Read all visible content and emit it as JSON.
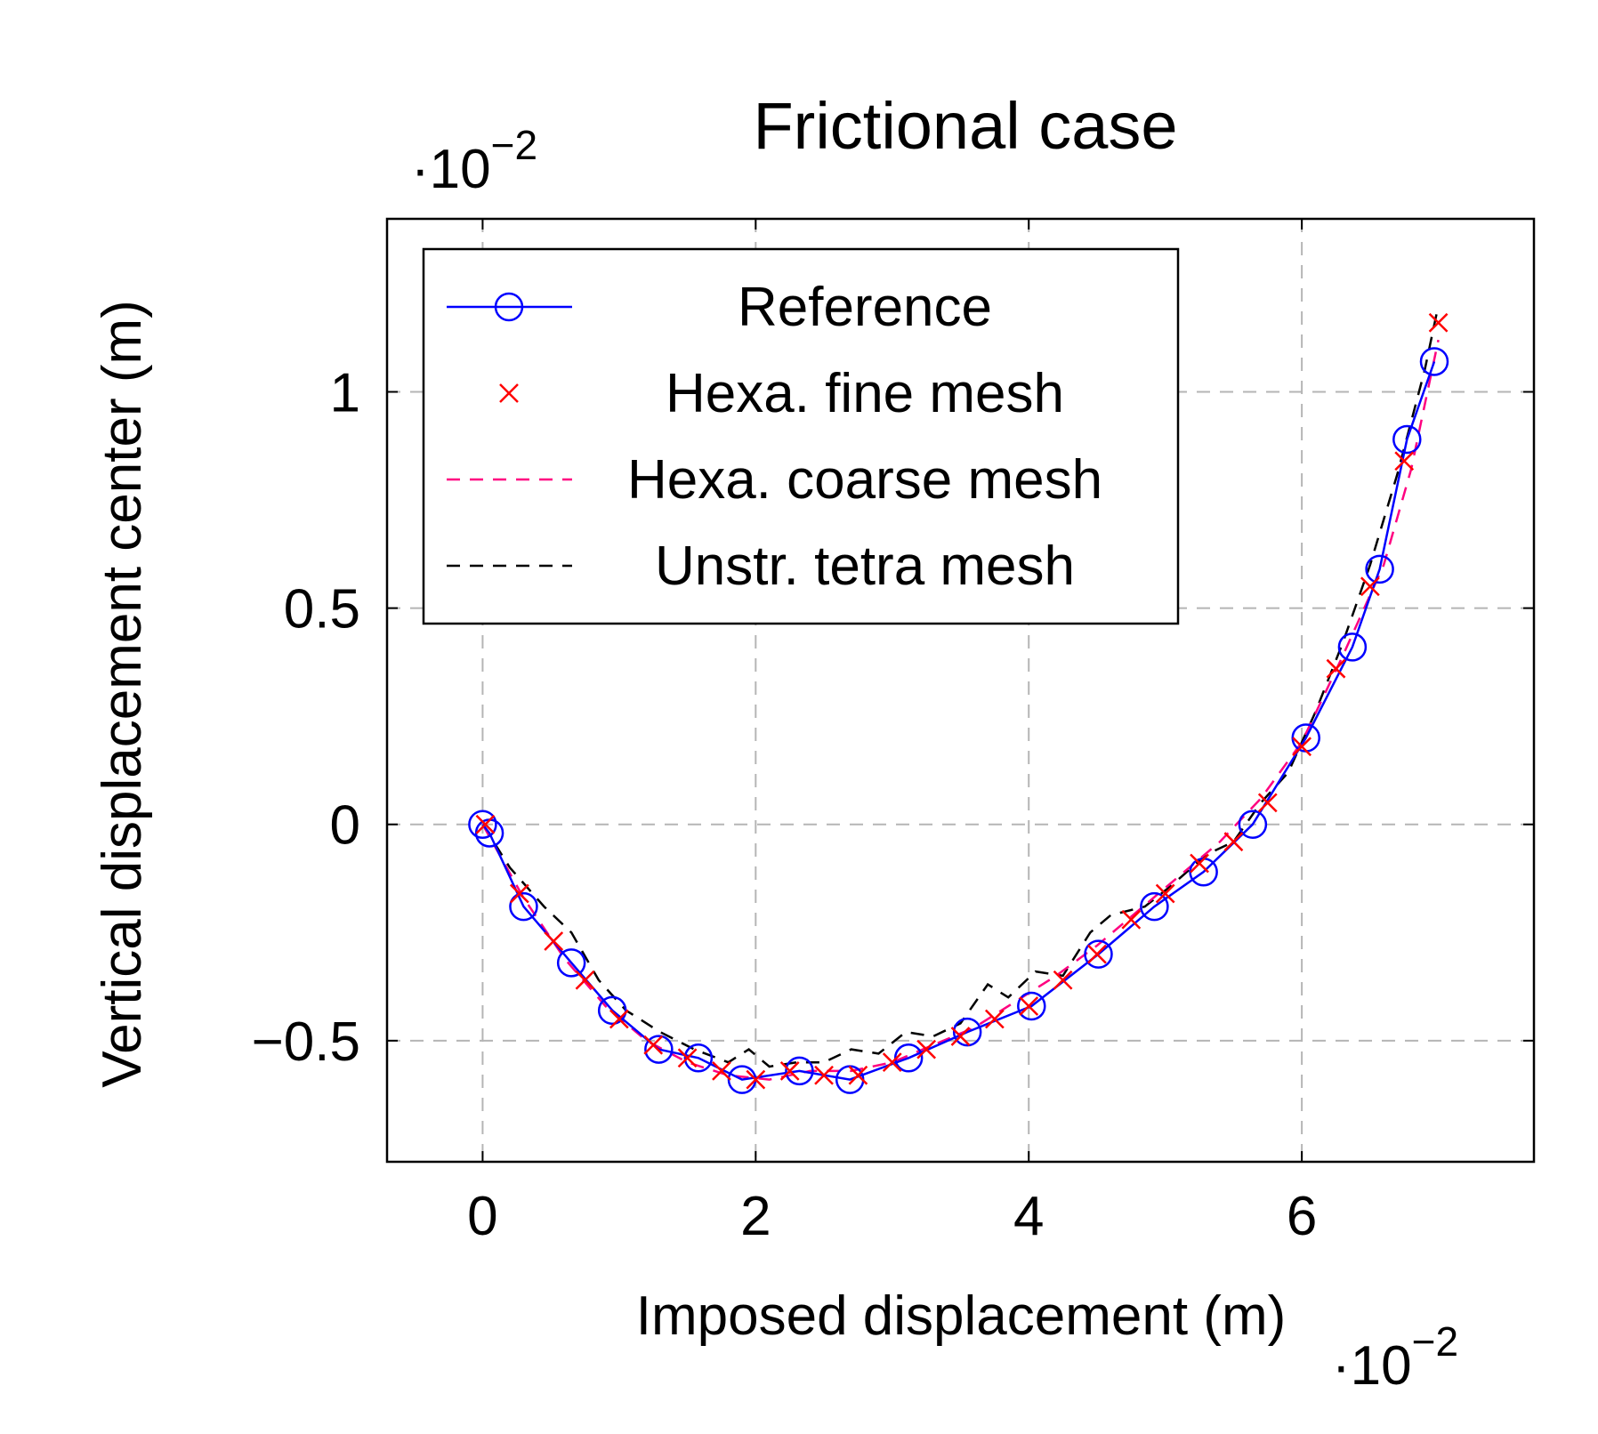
{
  "chart_data": {
    "type": "line",
    "title": "Frictional case",
    "xlabel": "Imposed displacement (m)",
    "ylabel": "Vertical displacement center (m)",
    "x_scale_label": "·10",
    "x_scale_exp": "−2",
    "y_scale_label": "·10",
    "y_scale_exp": "−2",
    "xlim": [
      -0.7,
      7.7
    ],
    "ylim": [
      -0.78,
      1.4
    ],
    "xticks": [
      0,
      2,
      4,
      6
    ],
    "xtick_labels": [
      "0",
      "2",
      "4",
      "6"
    ],
    "yticks": [
      -0.5,
      0,
      0.5,
      1
    ],
    "ytick_labels": [
      "−0.5",
      "0",
      "0.5",
      "1"
    ],
    "grid": true,
    "legend_position": "top-left",
    "series": [
      {
        "name": "Reference",
        "style": "solid-circle",
        "color": "#0000ff",
        "x": [
          0.0,
          0.05,
          0.3,
          0.65,
          0.95,
          1.29,
          1.58,
          1.9,
          2.32,
          2.69,
          3.12,
          3.55,
          4.02,
          4.51,
          4.92,
          5.28,
          5.64,
          6.03,
          6.37,
          6.57,
          6.77,
          6.97
        ],
        "y": [
          0.0,
          -0.02,
          -0.19,
          -0.32,
          -0.43,
          -0.52,
          -0.54,
          -0.59,
          -0.57,
          -0.59,
          -0.54,
          -0.48,
          -0.42,
          -0.3,
          -0.19,
          -0.11,
          0.0,
          0.2,
          0.41,
          0.59,
          0.89,
          1.07
        ]
      },
      {
        "name": "Hexa. fine mesh",
        "style": "cross",
        "color": "#ff0000",
        "x": [
          0.02,
          0.27,
          0.52,
          0.75,
          1.0,
          1.25,
          1.5,
          1.75,
          2.0,
          2.25,
          2.5,
          2.75,
          3.0,
          3.25,
          3.5,
          3.75,
          4.0,
          4.25,
          4.5,
          4.75,
          5.0,
          5.25,
          5.5,
          5.75,
          6.0,
          6.25,
          6.5,
          6.75,
          7.0
        ],
        "y": [
          0.0,
          -0.16,
          -0.27,
          -0.36,
          -0.45,
          -0.51,
          -0.54,
          -0.57,
          -0.59,
          -0.57,
          -0.58,
          -0.58,
          -0.55,
          -0.52,
          -0.49,
          -0.45,
          -0.42,
          -0.36,
          -0.3,
          -0.22,
          -0.16,
          -0.09,
          -0.04,
          0.05,
          0.18,
          0.36,
          0.55,
          0.84,
          1.16
        ]
      },
      {
        "name": "Hexa. coarse mesh",
        "style": "dashed",
        "color": "#ff0080",
        "x": [
          0.0,
          0.3,
          0.6,
          0.9,
          1.2,
          1.5,
          1.8,
          2.1,
          2.4,
          2.7,
          3.0,
          3.3,
          3.6,
          3.9,
          4.2,
          4.5,
          4.8,
          5.1,
          5.4,
          5.7,
          6.0,
          6.3,
          6.6,
          6.8,
          7.0
        ],
        "y": [
          0.0,
          -0.17,
          -0.31,
          -0.42,
          -0.5,
          -0.55,
          -0.58,
          -0.59,
          -0.57,
          -0.57,
          -0.55,
          -0.51,
          -0.47,
          -0.41,
          -0.35,
          -0.28,
          -0.2,
          -0.12,
          -0.04,
          0.06,
          0.19,
          0.39,
          0.6,
          0.82,
          1.12
        ]
      },
      {
        "name": "Unstr. tetra mesh",
        "style": "dashed",
        "color": "#000000",
        "x": [
          0.0,
          0.2,
          0.45,
          0.65,
          0.85,
          1.05,
          1.3,
          1.55,
          1.8,
          1.95,
          2.1,
          2.3,
          2.5,
          2.7,
          2.9,
          3.1,
          3.3,
          3.5,
          3.7,
          3.85,
          4.05,
          4.25,
          4.45,
          4.6,
          4.85,
          5.05,
          5.3,
          5.5,
          5.7,
          5.9,
          6.1,
          6.3,
          6.5,
          6.7,
          6.9,
          7.0
        ],
        "y": [
          0.0,
          -0.1,
          -0.19,
          -0.25,
          -0.36,
          -0.43,
          -0.48,
          -0.52,
          -0.55,
          -0.52,
          -0.56,
          -0.55,
          -0.55,
          -0.52,
          -0.53,
          -0.48,
          -0.49,
          -0.46,
          -0.37,
          -0.4,
          -0.34,
          -0.35,
          -0.25,
          -0.21,
          -0.19,
          -0.14,
          -0.07,
          -0.04,
          0.05,
          0.12,
          0.26,
          0.42,
          0.6,
          0.81,
          1.05,
          1.2
        ]
      }
    ]
  }
}
